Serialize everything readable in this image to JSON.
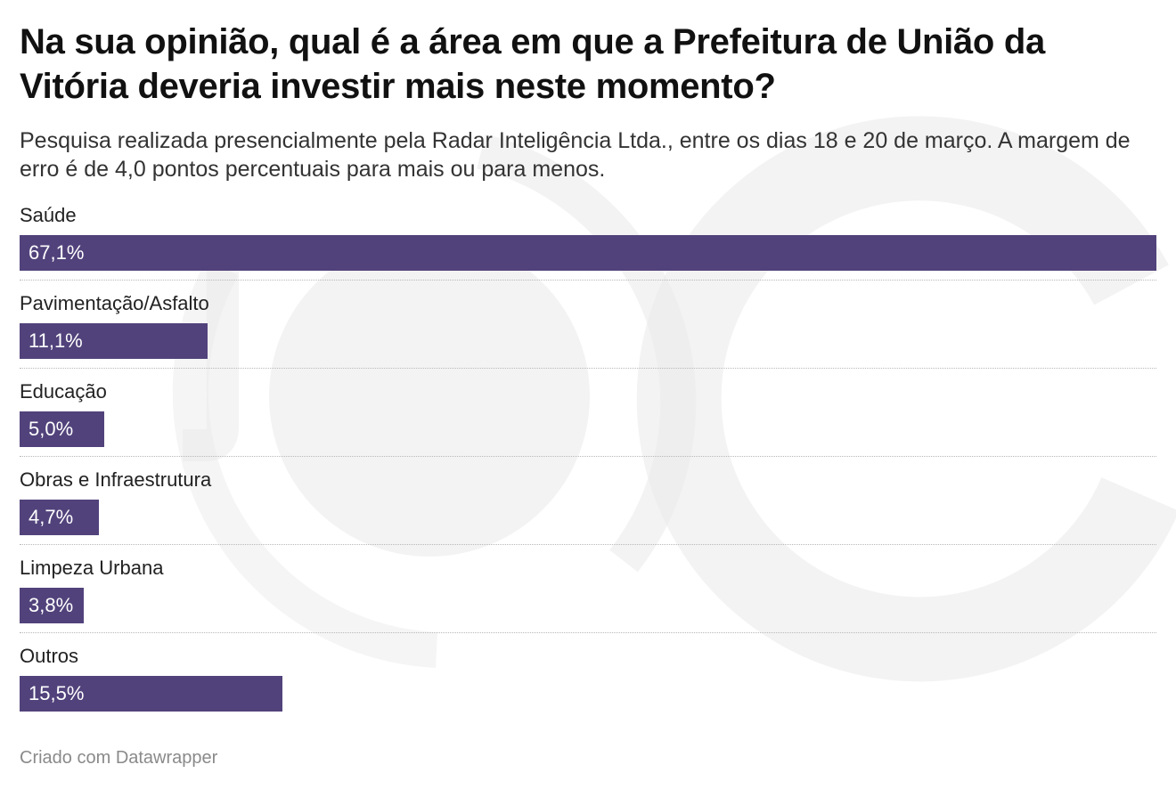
{
  "header": {
    "title": "Na sua opinião, qual é a área em que a Prefeitura de União da Vitória deveria investir mais neste momento?",
    "subtitle": "Pesquisa realizada presencialmente pela Radar Inteligência Ltda., entre os dias 18 e 20 de março. A margem de erro é de 4,0 pontos percentuais para mais ou para menos."
  },
  "footer": {
    "credit": "Criado com Datawrapper"
  },
  "colors": {
    "bar": "#51427b",
    "watermark": "#e9e9e9"
  },
  "chart_data": {
    "type": "bar",
    "orientation": "horizontal",
    "title": "Na sua opinião, qual é a área em que a Prefeitura de União da Vitória deveria investir mais neste momento?",
    "subtitle": "Pesquisa realizada presencialmente pela Radar Inteligência Ltda., entre os dias 18 e 20 de março. A margem de erro é de 4,0 pontos percentuais para mais ou para menos.",
    "categories": [
      "Saúde",
      "Pavimentação/Asfalto",
      "Educação",
      "Obras e Infraestrutura",
      "Limpeza Urbana",
      "Outros"
    ],
    "values": [
      67.1,
      11.1,
      5.0,
      4.7,
      3.8,
      15.5
    ],
    "value_labels": [
      "67,1%",
      "11,1%",
      "5,0%",
      "4,7%",
      "3,8%",
      "15,5%"
    ],
    "unit": "%",
    "xlim": [
      0,
      67.1
    ],
    "grid": false,
    "legend": "none"
  }
}
